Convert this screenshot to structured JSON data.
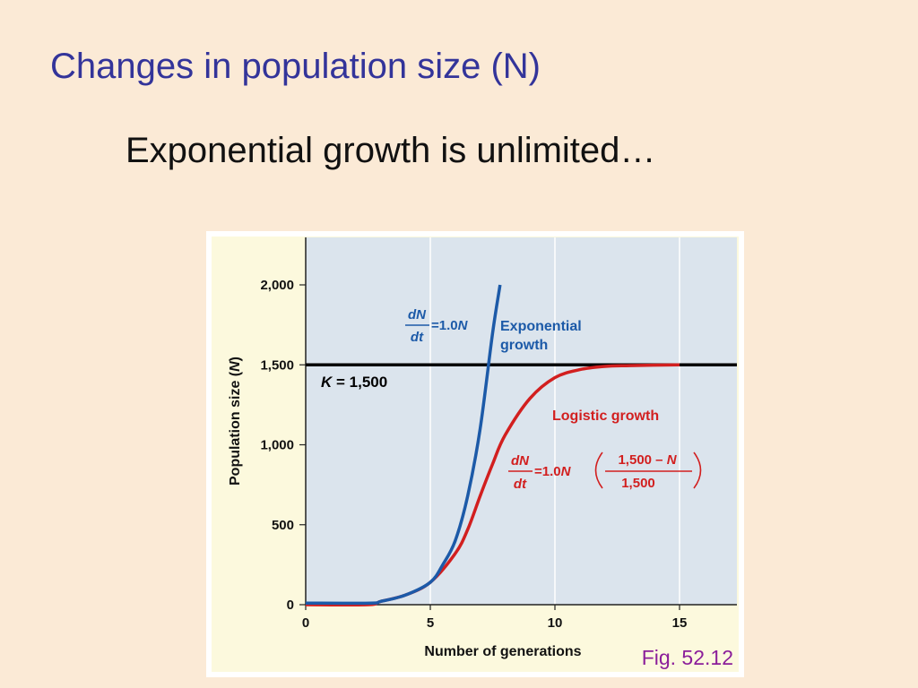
{
  "slide": {
    "title": "Changes in population size (N)",
    "subtitle": "Exponential growth is unlimited…",
    "figure_caption": "Fig. 52.12"
  },
  "colors": {
    "background": "#fbead6",
    "title": "#33349a",
    "plot_bg": "#dbe4ed",
    "frame_bg": "#fcf9dd",
    "exponential": "#1c5aa8",
    "logistic": "#d21f1f",
    "caption": "#8b1e9a"
  },
  "chart_data": {
    "type": "line",
    "title": "",
    "xlabel": "Number of generations",
    "ylabel_text": "Population size (",
    "ylabel_var": "N",
    "ylabel_close": ")",
    "xlim": [
      0,
      17
    ],
    "ylim": [
      0,
      2000
    ],
    "x_ticks": [
      {
        "value": 0,
        "label": "0"
      },
      {
        "value": 5,
        "label": "5"
      },
      {
        "value": 10,
        "label": "10"
      },
      {
        "value": 15,
        "label": "15"
      }
    ],
    "y_ticks": [
      {
        "value": 0,
        "label": "0"
      },
      {
        "value": 500,
        "label": "500"
      },
      {
        "value": 1000,
        "label": "1,000"
      },
      {
        "value": 1500,
        "label": "1,500"
      },
      {
        "value": 2000,
        "label": "2,000"
      }
    ],
    "grid_x": [
      5,
      10,
      15
    ],
    "carrying_capacity": {
      "value": 1500,
      "label_var": "K",
      "label_rest": " = 1,500"
    },
    "series": [
      {
        "name": "Exponential growth",
        "name_line1": "Exponential",
        "name_line2": "growth",
        "equation": {
          "num": "dN",
          "den": "dt",
          "rhs": "=1.0",
          "rhs_var": "N"
        },
        "x": [
          0,
          2.6,
          3,
          4,
          5,
          5.5,
          6,
          6.5,
          7,
          7.5,
          7.8
        ],
        "y": [
          10,
          10,
          20,
          60,
          140,
          250,
          400,
          680,
          1100,
          1700,
          2000
        ]
      },
      {
        "name": "Logistic growth",
        "equation": {
          "num": "dN",
          "den": "dt",
          "rhs": "=1.0",
          "rhs_var": "N",
          "frac_num": "1,500 – ",
          "frac_num_var": "N",
          "frac_den": "1,500"
        },
        "x": [
          0,
          2.5,
          3,
          4,
          5,
          6,
          6.5,
          7,
          7.5,
          8,
          9,
          10,
          11,
          12,
          13,
          15
        ],
        "y": [
          0,
          0,
          20,
          60,
          140,
          320,
          470,
          680,
          880,
          1060,
          1290,
          1420,
          1470,
          1490,
          1495,
          1500
        ]
      }
    ]
  }
}
